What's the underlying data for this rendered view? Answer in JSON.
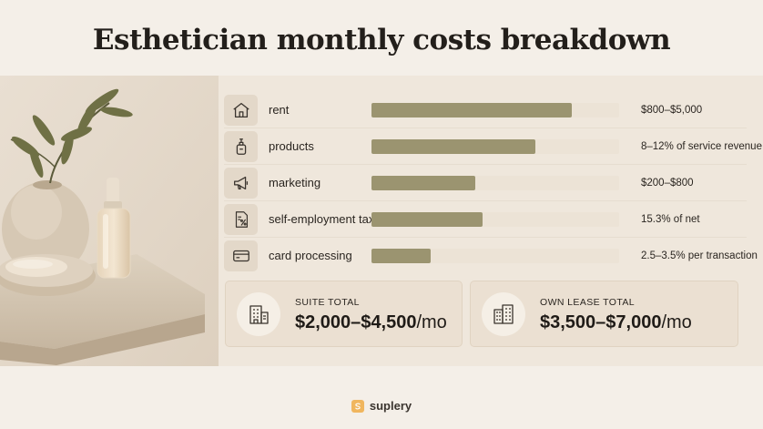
{
  "title": "Esthetician monthly costs breakdown",
  "rows": [
    {
      "icon": "house-icon",
      "label": "rent",
      "value": "$800–$5,000",
      "bar_level": 0.81
    },
    {
      "icon": "pump-bottle-icon",
      "label": "products",
      "value": "8–12% of service revenue",
      "bar_level": 0.66
    },
    {
      "icon": "megaphone-icon",
      "label": "marketing",
      "value": "$200–$800",
      "bar_level": 0.42
    },
    {
      "icon": "tax-document-icon",
      "label": "self-employment tax",
      "value": "15.3% of net",
      "bar_level": 0.45
    },
    {
      "icon": "credit-card-icon",
      "label": "card processing",
      "value": "2.5–3.5% per transaction",
      "bar_level": 0.24
    }
  ],
  "totals": [
    {
      "icon": "suite-building-icon",
      "label": "SUITE TOTAL",
      "amount": "$2,000–$4,500",
      "unit": "/mo"
    },
    {
      "icon": "office-building-icon",
      "label": "OWN LEASE TOTAL",
      "amount": "$3,500–$7,000",
      "unit": "/mo"
    }
  ],
  "brand": "suplery",
  "colors": {
    "background": "#f4efe8",
    "band": "#efe7dc",
    "bar_fill": "#9b9470",
    "bar_track": "#ece3d6",
    "icon_tile": "#e3d8c9",
    "brand_logo": "#f0b65e"
  }
}
